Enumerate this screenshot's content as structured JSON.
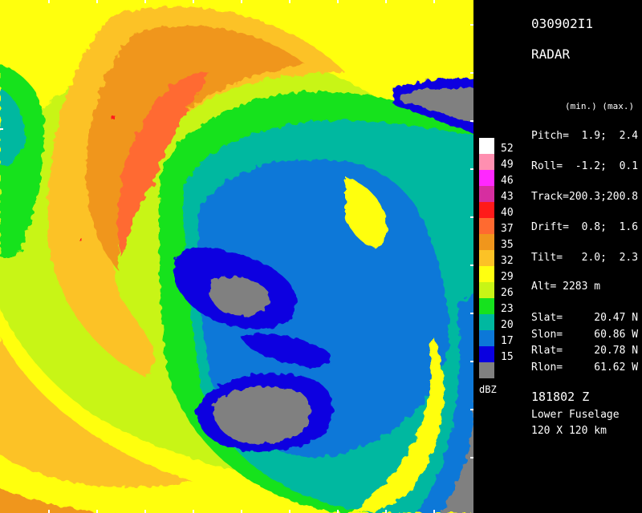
{
  "header": {
    "flight_id": "030902I1",
    "product": "RADAR"
  },
  "attitude": {
    "minmax_header": "(min.) (max.)",
    "rows": [
      "Pitch=  1.9;  2.4",
      "Roll=  -1.2;  0.1",
      "Track=200.3;200.8",
      "Drift=  0.8;  1.6",
      "Tilt=   2.0;  2.3"
    ],
    "altitude": "Alt= 2283 m"
  },
  "positions": [
    "Slat=     20.47 N",
    "Slon=     60.86 W",
    "Rlat=     20.78 N",
    "Rlon=     61.62 W"
  ],
  "footer": {
    "time": "181802 Z",
    "antenna": "Lower Fuselage",
    "extent": "120 X 120 km"
  },
  "colorbar": {
    "unit": "dBZ",
    "levels": [
      {
        "label": "52",
        "color": "#ffffff"
      },
      {
        "label": "49",
        "color": "#ff8fb0"
      },
      {
        "label": "46",
        "color": "#ff28ff"
      },
      {
        "label": "43",
        "color": "#d62ea0"
      },
      {
        "label": "40",
        "color": "#ff1a1a"
      },
      {
        "label": "37",
        "color": "#ff6a30"
      },
      {
        "label": "35",
        "color": "#f0961c"
      },
      {
        "label": "32",
        "color": "#fcc226"
      },
      {
        "label": "29",
        "color": "#ffff10"
      },
      {
        "label": "26",
        "color": "#c8f516"
      },
      {
        "label": "23",
        "color": "#16e21e"
      },
      {
        "label": "20",
        "color": "#00b8a0"
      },
      {
        "label": "17",
        "color": "#0c78d8"
      },
      {
        "label": "15",
        "color": "#0a00e0"
      },
      {
        "label": "",
        "color": "#808080"
      }
    ]
  }
}
